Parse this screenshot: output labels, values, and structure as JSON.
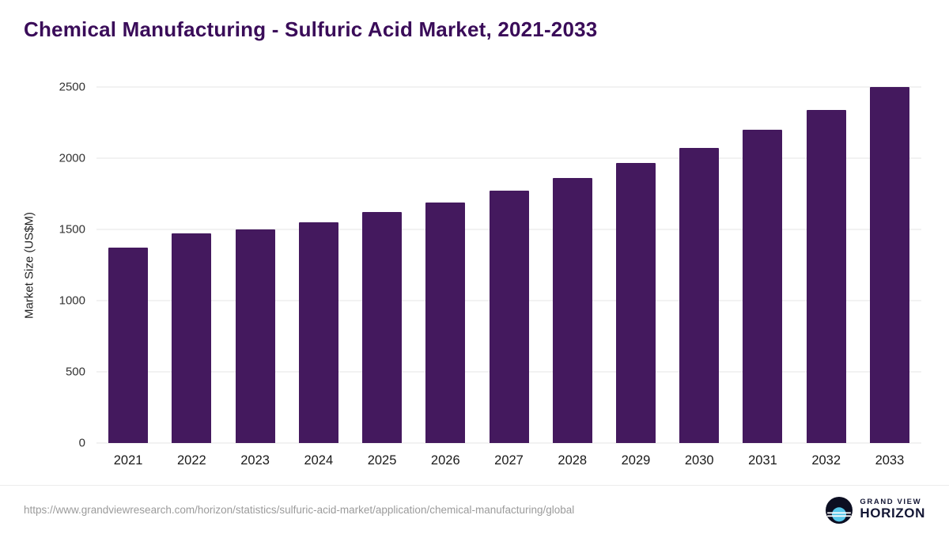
{
  "chart_data": {
    "type": "bar",
    "title": "Chemical Manufacturing - Sulfuric Acid Market, 2021-2033",
    "xlabel": "",
    "ylabel": "Market Size (US$M)",
    "categories": [
      "2021",
      "2022",
      "2023",
      "2024",
      "2025",
      "2026",
      "2027",
      "2028",
      "2029",
      "2030",
      "2031",
      "2032",
      "2033"
    ],
    "values": [
      1370,
      1470,
      1500,
      1550,
      1620,
      1690,
      1775,
      1860,
      1965,
      2075,
      2200,
      2340,
      2500
    ],
    "ylim": [
      0,
      2500
    ],
    "yticks": [
      0,
      500,
      1000,
      1500,
      2000,
      2500
    ],
    "bar_color": "#44195e",
    "grid": true,
    "legend": false,
    "title_color": "#3a0c59"
  },
  "footer": {
    "source_url": "https://www.grandviewresearch.com/horizon/statistics/sulfuric-acid-market/application/chemical-manufacturing/global",
    "brand_top": "GRAND VIEW",
    "brand_bottom": "HORIZON"
  }
}
